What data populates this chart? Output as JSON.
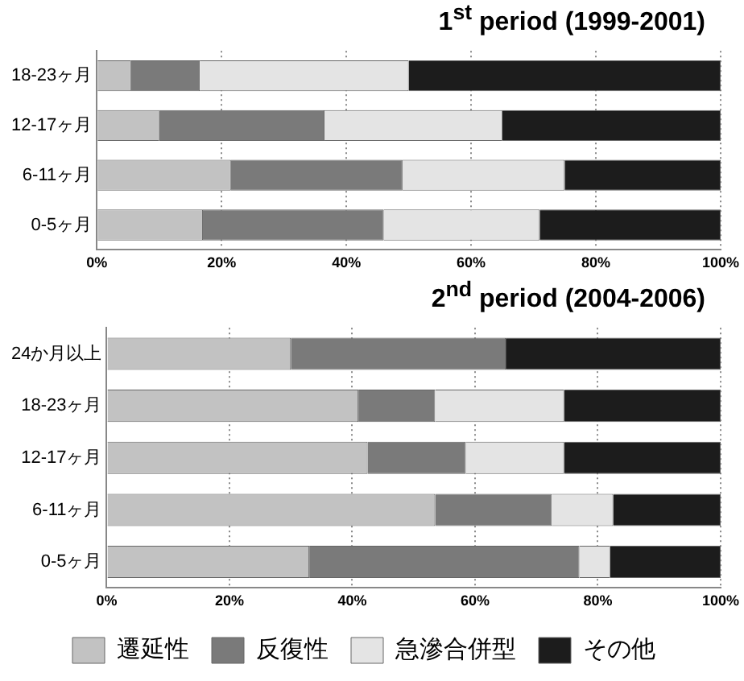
{
  "chart_data": [
    {
      "type": "bar",
      "orientation": "horizontal",
      "stacked": true,
      "title": "1$^{st}$ period (1999-2001)",
      "categories": [
        "18-23ヶ月",
        "12-17ヶ月",
        "6-11ヶ月",
        "0-5ヶ月"
      ],
      "series": [
        {
          "color": "#c2c2c2",
          "values": [
            5.5,
            10,
            21.5,
            17
          ]
        },
        {
          "color": "#7a7a7a",
          "values": [
            11,
            26.5,
            27.5,
            29
          ]
        },
        {
          "color": "#e4e4e4",
          "values": [
            33.5,
            28.5,
            26,
            25
          ]
        },
        {
          "color": "#1c1c1c",
          "values": [
            50,
            35,
            25,
            29
          ]
        }
      ],
      "xlim": [
        0,
        100
      ],
      "xticks": [
        {
          "value": 0,
          "label": "0%"
        },
        {
          "value": 20,
          "label": "20%"
        },
        {
          "value": 40,
          "label": "40%"
        },
        {
          "value": 60,
          "label": "60%"
        },
        {
          "value": 80,
          "label": "80%"
        },
        {
          "value": 100,
          "label": "100%"
        }
      ],
      "grid": "x",
      "legend": false
    },
    {
      "type": "bar",
      "orientation": "horizontal",
      "stacked": true,
      "title": "2$^{nd}$ period (2004-2006)",
      "categories": [
        "24か月以上",
        "18-23ヶ月",
        "12-17ヶ月",
        "6-11ヶ月",
        "0-5ヶ月"
      ],
      "series": [
        {
          "name": "遷延性",
          "color": "#c2c2c2",
          "values": [
            30,
            41,
            42.5,
            53.5,
            33
          ]
        },
        {
          "name": "反復性",
          "color": "#7a7a7a",
          "values": [
            35,
            12.5,
            16,
            19,
            44
          ]
        },
        {
          "name": "急滲合併型",
          "color": "#e4e4e4",
          "values": [
            0,
            21,
            16,
            10,
            5
          ]
        },
        {
          "name": "その他",
          "color": "#1c1c1c",
          "values": [
            35,
            25.5,
            25.5,
            17.5,
            18
          ]
        }
      ],
      "xlim": [
        0,
        100
      ],
      "xticks": [
        {
          "value": 0,
          "label": "0%"
        },
        {
          "value": 20,
          "label": "20%"
        },
        {
          "value": 40,
          "label": "40%"
        },
        {
          "value": 60,
          "label": "60%"
        },
        {
          "value": 80,
          "label": "80%"
        },
        {
          "value": 100,
          "label": "100%"
        }
      ],
      "grid": "x",
      "legend": "bottom"
    }
  ]
}
